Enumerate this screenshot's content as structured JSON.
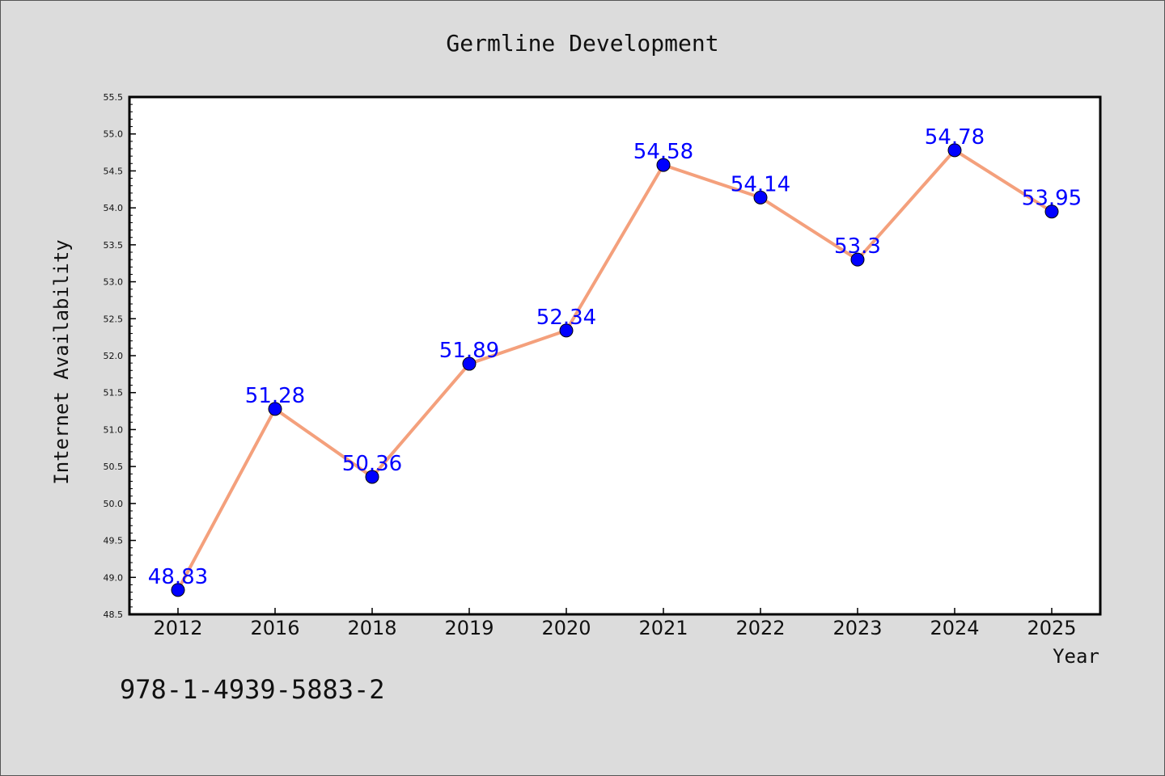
{
  "chart_data": {
    "type": "line",
    "title": "Germline Development",
    "xlabel": "Year",
    "ylabel": "Internet Availability",
    "categories": [
      "2012",
      "2016",
      "2018",
      "2019",
      "2020",
      "2021",
      "2022",
      "2023",
      "2024",
      "2025"
    ],
    "values": [
      48.83,
      51.28,
      50.36,
      51.89,
      52.34,
      54.58,
      54.14,
      53.3,
      54.78,
      53.95
    ],
    "data_labels": [
      "48.83",
      "51.28",
      "50.36",
      "51.89",
      "52.34",
      "54.58",
      "54.14",
      "53.3",
      "54.78",
      "53.95"
    ],
    "ylim": [
      48.5,
      55.5
    ],
    "yticks": [
      "48.5",
      "49.0",
      "49.5",
      "50.0",
      "50.5",
      "51.0",
      "51.5",
      "52.0",
      "52.5",
      "53.0",
      "53.5",
      "54.0",
      "54.5",
      "55.0",
      "55.5"
    ],
    "grid": false,
    "legend": "none",
    "line_color": "#f4a07c",
    "marker_color": "#0000ff",
    "label_color": "#0000ff",
    "plot_background": "#ffffff",
    "figure_background": "#dcdcdc"
  },
  "footer_text": "978-1-4939-5883-2"
}
